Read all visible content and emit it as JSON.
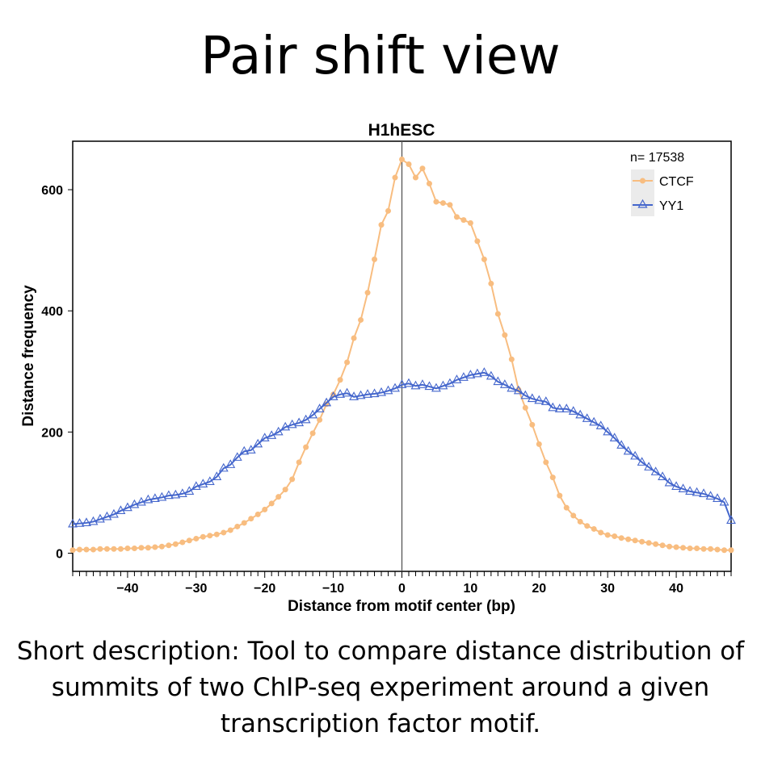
{
  "slide": {
    "title": "Pair shift view",
    "description": "Short description: Tool to compare distance distribution of summits of two ChIP-seq experiment around a given transcription factor motif."
  },
  "colors": {
    "ctcf": "#f8bd80",
    "yy1": "#4466cc",
    "axis": "#000000",
    "zero_line": "#555555",
    "legend_bg": "#ebebeb"
  },
  "chart_data": {
    "type": "line",
    "title": "H1hESC",
    "xlabel": "Distance from motif center (bp)",
    "ylabel": "Distance frequency",
    "xlim": [
      -48,
      48
    ],
    "ylim": [
      -30,
      680
    ],
    "xticks": [
      -40,
      -30,
      -20,
      -10,
      0,
      10,
      20,
      30,
      40
    ],
    "yticks": [
      0,
      200,
      400,
      600
    ],
    "legend_title": "n= 17538",
    "legend_position": "top-right",
    "grid": false,
    "x": [
      -48,
      -47,
      -46,
      -45,
      -44,
      -43,
      -42,
      -41,
      -40,
      -39,
      -38,
      -37,
      -36,
      -35,
      -34,
      -33,
      -32,
      -31,
      -30,
      -29,
      -28,
      -27,
      -26,
      -25,
      -24,
      -23,
      -22,
      -21,
      -20,
      -19,
      -18,
      -17,
      -16,
      -15,
      -14,
      -13,
      -12,
      -11,
      -10,
      -9,
      -8,
      -7,
      -6,
      -5,
      -4,
      -3,
      -2,
      -1,
      0,
      1,
      2,
      3,
      4,
      5,
      6,
      7,
      8,
      9,
      10,
      11,
      12,
      13,
      14,
      15,
      16,
      17,
      18,
      19,
      20,
      21,
      22,
      23,
      24,
      25,
      26,
      27,
      28,
      29,
      30,
      31,
      32,
      33,
      34,
      35,
      36,
      37,
      38,
      39,
      40,
      41,
      42,
      43,
      44,
      45,
      46,
      47,
      48
    ],
    "series": [
      {
        "name": "CTCF",
        "marker": "circle",
        "values": [
          5,
          6,
          6,
          6,
          7,
          7,
          7,
          7,
          8,
          8,
          9,
          9,
          10,
          11,
          13,
          15,
          18,
          21,
          24,
          27,
          29,
          31,
          34,
          38,
          44,
          50,
          57,
          64,
          72,
          82,
          93,
          105,
          122,
          150,
          175,
          198,
          220,
          246,
          262,
          286,
          315,
          355,
          385,
          430,
          485,
          542,
          565,
          620,
          650,
          642,
          620,
          635,
          610,
          580,
          578,
          575,
          555,
          550,
          545,
          515,
          485,
          445,
          395,
          360,
          320,
          270,
          240,
          212,
          180,
          150,
          125,
          95,
          75,
          62,
          52,
          45,
          40,
          34,
          30,
          28,
          25,
          23,
          21,
          19,
          17,
          15,
          13,
          11,
          10,
          9,
          8,
          8,
          7,
          7,
          6,
          5,
          5
        ]
      },
      {
        "name": "YY1",
        "marker": "triangle",
        "values": [
          48,
          49,
          50,
          52,
          56,
          60,
          64,
          70,
          75,
          80,
          84,
          88,
          90,
          92,
          95,
          96,
          98,
          102,
          110,
          114,
          118,
          126,
          140,
          146,
          158,
          168,
          170,
          180,
          190,
          194,
          200,
          208,
          212,
          215,
          220,
          228,
          238,
          248,
          258,
          262,
          264,
          258,
          260,
          262,
          263,
          265,
          268,
          272,
          278,
          280,
          276,
          278,
          275,
          272,
          276,
          280,
          286,
          290,
          294,
          296,
          298,
          292,
          283,
          278,
          272,
          268,
          260,
          255,
          252,
          250,
          240,
          238,
          238,
          234,
          228,
          222,
          216,
          210,
          200,
          190,
          178,
          168,
          160,
          150,
          142,
          134,
          126,
          116,
          110,
          106,
          102,
          100,
          98,
          94,
          90,
          84,
          54
        ]
      }
    ]
  }
}
